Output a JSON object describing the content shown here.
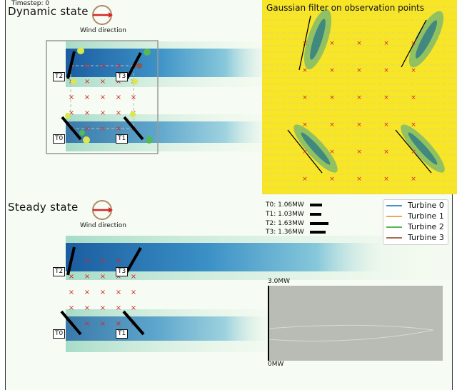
{
  "header": {
    "timestep": "Timestep: 0"
  },
  "dynamic": {
    "title": "Dynamic  state",
    "wind_label": "Wind direction"
  },
  "steady": {
    "title": "Steady  state",
    "wind_label": "Wind direction"
  },
  "gaussian": {
    "title": "Gaussian  filter  on  observation  points"
  },
  "turbines": [
    {
      "id": "T0",
      "color": "#1f77b4"
    },
    {
      "id": "T1",
      "color": "#ff7f0e"
    },
    {
      "id": "T2",
      "color": "#2ca02c"
    },
    {
      "id": "T3",
      "color": "#8c564b"
    }
  ],
  "legend": [
    {
      "label": "Turbine 0",
      "color": "#4a90c8"
    },
    {
      "label": "Turbine 1",
      "color": "#e8a95a"
    },
    {
      "label": "Turbine 2",
      "color": "#55b957"
    },
    {
      "label": "Turbine 3",
      "color": "#a8704f"
    }
  ],
  "power": [
    {
      "label": "T0: 1.06MW",
      "value_mw": 1.06
    },
    {
      "label": "T1: 1.03MW",
      "value_mw": 1.03
    },
    {
      "label": "T2: 1.63MW",
      "value_mw": 1.63
    },
    {
      "label": "T3: 1.36MW",
      "value_mw": 1.36
    }
  ],
  "inset": {
    "top_label": "3.0MW",
    "bottom_label": "0MW"
  },
  "colors": {
    "accent_red": "#d62728",
    "wind_circle": "#b08a6a",
    "gauss_bg": "#f7e526"
  }
}
